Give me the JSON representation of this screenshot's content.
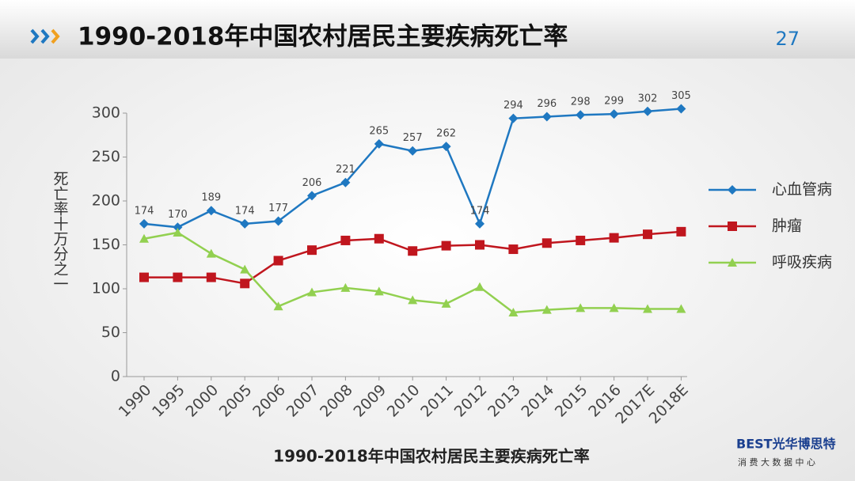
{
  "slide": {
    "title": "1990-2018年中国农村居民主要疾病死亡率",
    "page_number": "27"
  },
  "logo": {
    "name": "BEST光华博思特",
    "subtitle": "消 费 大 数 据 中 心"
  },
  "chart_data": {
    "type": "line",
    "title": "1990-2018年中国农村居民主要疾病死亡率",
    "y_label": "死亡率十万分之一",
    "categories": [
      "1990",
      "1995",
      "2000",
      "2005",
      "2006",
      "2007",
      "2008",
      "2009",
      "2010",
      "2011",
      "2012",
      "2013",
      "2014",
      "2015",
      "2016",
      "2017E",
      "2018E"
    ],
    "ylim": [
      0,
      300
    ],
    "yticks": [
      0,
      50,
      100,
      150,
      200,
      250,
      300
    ],
    "grid": false,
    "legend": "right",
    "series": [
      {
        "name": "心血管病",
        "color": "#1f78c1",
        "marker": "diamond",
        "show_labels": true,
        "values": [
          174,
          170,
          189,
          174,
          177,
          206,
          221,
          265,
          257,
          262,
          174,
          294,
          296,
          298,
          299,
          302,
          305
        ]
      },
      {
        "name": "肿瘤",
        "color": "#c0161e",
        "marker": "square",
        "show_labels": false,
        "values": [
          113,
          113,
          113,
          106,
          132,
          144,
          155,
          157,
          143,
          149,
          150,
          145,
          152,
          155,
          158,
          162,
          165
        ]
      },
      {
        "name": "呼吸疾病",
        "color": "#92d050",
        "marker": "triangle",
        "show_labels": false,
        "values": [
          157,
          164,
          140,
          122,
          80,
          96,
          101,
          97,
          87,
          83,
          102,
          73,
          76,
          78,
          78,
          77,
          77
        ]
      }
    ]
  }
}
